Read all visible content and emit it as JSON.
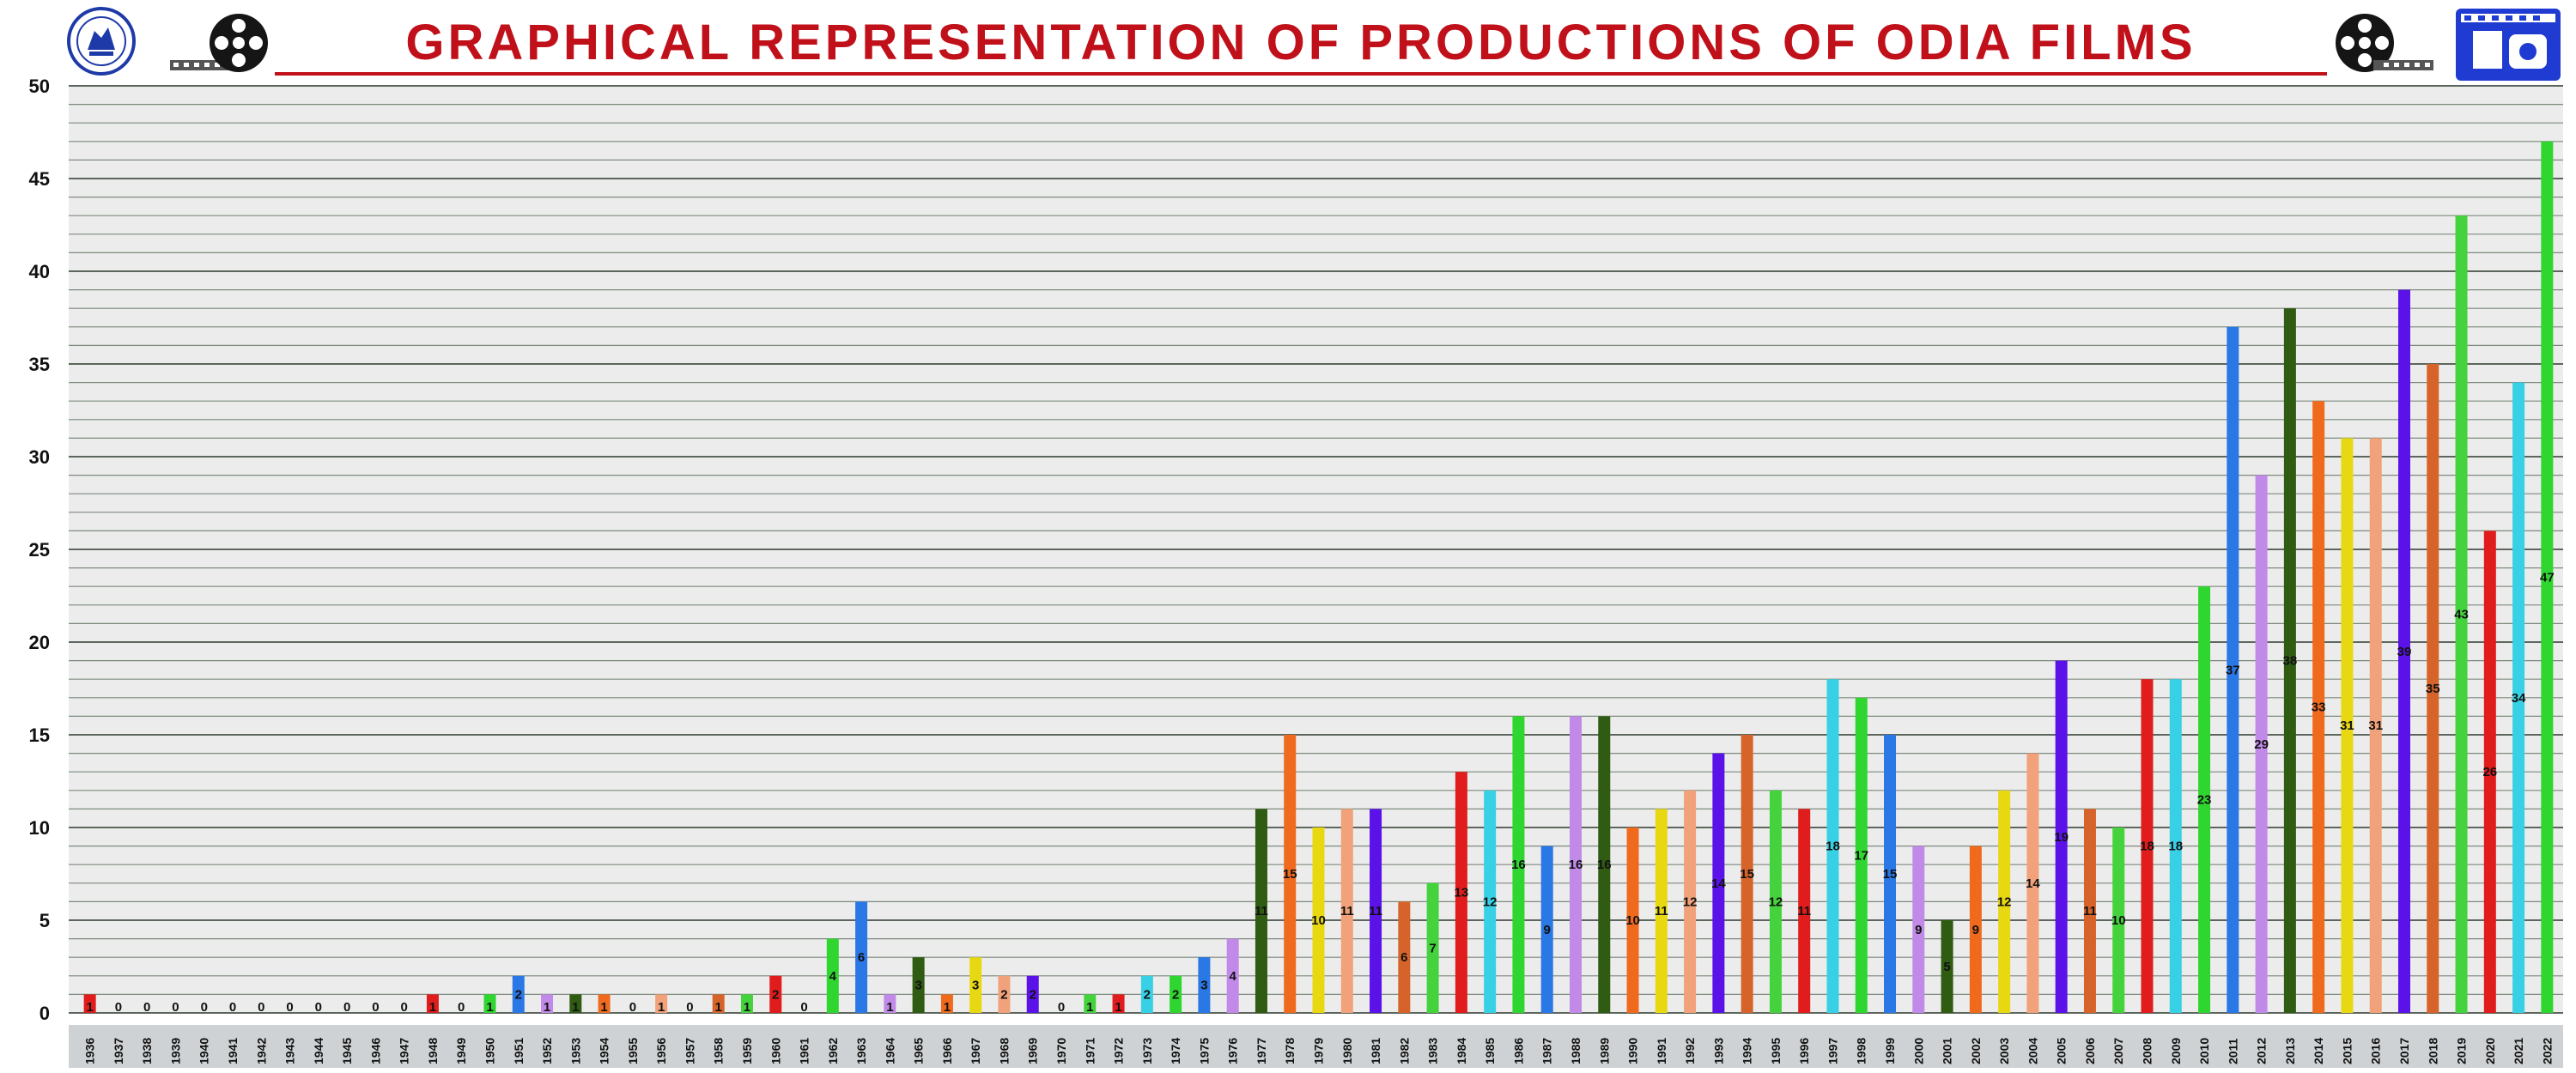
{
  "header": {
    "title": "GRAPHICAL REPRESENTATION OF PRODUCTIONS OF ODIA FILMS",
    "left_logo_icon": "government-emblem-icon",
    "reel_icon": "film-reel-icon",
    "right_logo_icon": "film-strip-logo-icon"
  },
  "colors": {
    "title": "#c0101a",
    "grid": "#7d8a7d",
    "xaxis_band": "#cfd2d4",
    "palette": [
      "#e01c1c",
      "#38d0e4",
      "#2fd62f",
      "#2a77e6",
      "#c28ae8",
      "#2f5b12",
      "#f06a1e",
      "#e8d812",
      "#f1a27a",
      "#5a12e8",
      "#d6642a",
      "#45d33d"
    ]
  },
  "chart_data": {
    "type": "bar",
    "title": "GRAPHICAL REPRESENTATION OF PRODUCTIONS OF ODIA FILMS",
    "xlabel": "",
    "ylabel": "",
    "ylim": [
      0,
      50
    ],
    "yticks": [
      0,
      5,
      10,
      15,
      20,
      25,
      30,
      35,
      40,
      45,
      50
    ],
    "grid": true,
    "legend": "none",
    "categories": [
      "1936",
      "1937",
      "1938",
      "1939",
      "1940",
      "1941",
      "1942",
      "1943",
      "1944",
      "1945",
      "1946",
      "1947",
      "1948",
      "1949",
      "1950",
      "1951",
      "1952",
      "1953",
      "1954",
      "1955",
      "1956",
      "1957",
      "1958",
      "1959",
      "1960",
      "1961",
      "1962",
      "1963",
      "1964",
      "1965",
      "1966",
      "1967",
      "1968",
      "1969",
      "1970",
      "1971",
      "1972",
      "1973",
      "1974",
      "1975",
      "1976",
      "1977",
      "1978",
      "1979",
      "1980",
      "1981",
      "1982",
      "1983",
      "1984",
      "1985",
      "1986",
      "1987",
      "1988",
      "1989",
      "1990",
      "1991",
      "1992",
      "1993",
      "1994",
      "1995",
      "1996",
      "1997",
      "1998",
      "1999",
      "2000",
      "2001",
      "2002",
      "2003",
      "2004",
      "2005",
      "2006",
      "2007",
      "2008",
      "2009",
      "2010",
      "2011",
      "2012",
      "2013",
      "2014",
      "2015",
      "2016",
      "2017",
      "2018",
      "2019",
      "2020",
      "2021",
      "2022"
    ],
    "values": [
      1,
      0,
      0,
      0,
      0,
      0,
      0,
      0,
      0,
      0,
      0,
      0,
      1,
      0,
      1,
      2,
      1,
      1,
      1,
      0,
      1,
      0,
      1,
      1,
      2,
      0,
      4,
      6,
      1,
      3,
      1,
      3,
      2,
      2,
      0,
      1,
      1,
      2,
      2,
      3,
      4,
      11,
      15,
      10,
      11,
      11,
      6,
      7,
      13,
      12,
      16,
      9,
      16,
      16,
      10,
      11,
      12,
      14,
      15,
      12,
      11,
      18,
      17,
      15,
      9,
      5,
      9,
      12,
      14,
      19,
      11,
      10,
      18,
      18,
      23,
      37,
      29,
      38,
      33,
      31,
      31,
      39,
      35,
      43,
      26,
      34,
      47
    ]
  }
}
